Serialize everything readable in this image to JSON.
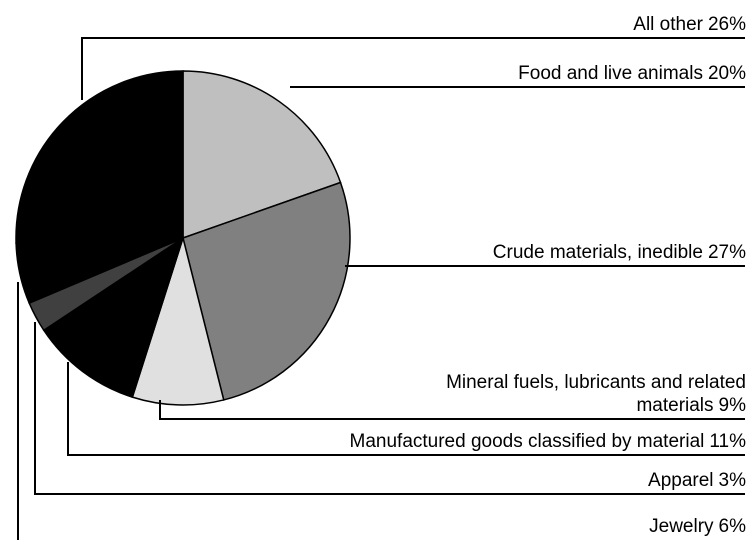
{
  "chart_data": {
    "type": "pie",
    "categories": [
      "Food and live animals",
      "Crude materials, inedible",
      "Mineral fuels, lubricants and related materials",
      "Manufactured goods classified by material",
      "Apparel",
      "Jewelry",
      "All other"
    ],
    "values": [
      20,
      27,
      9,
      11,
      3,
      6,
      26
    ],
    "value_labels": [
      "20%",
      "27%",
      "9%",
      "11%",
      "3%",
      "6%",
      "26%"
    ],
    "colors": [
      "#bfbfbf",
      "#808080",
      "#e0e0e0",
      "#000000",
      "#404040",
      "#000000",
      "#000000"
    ]
  }
}
